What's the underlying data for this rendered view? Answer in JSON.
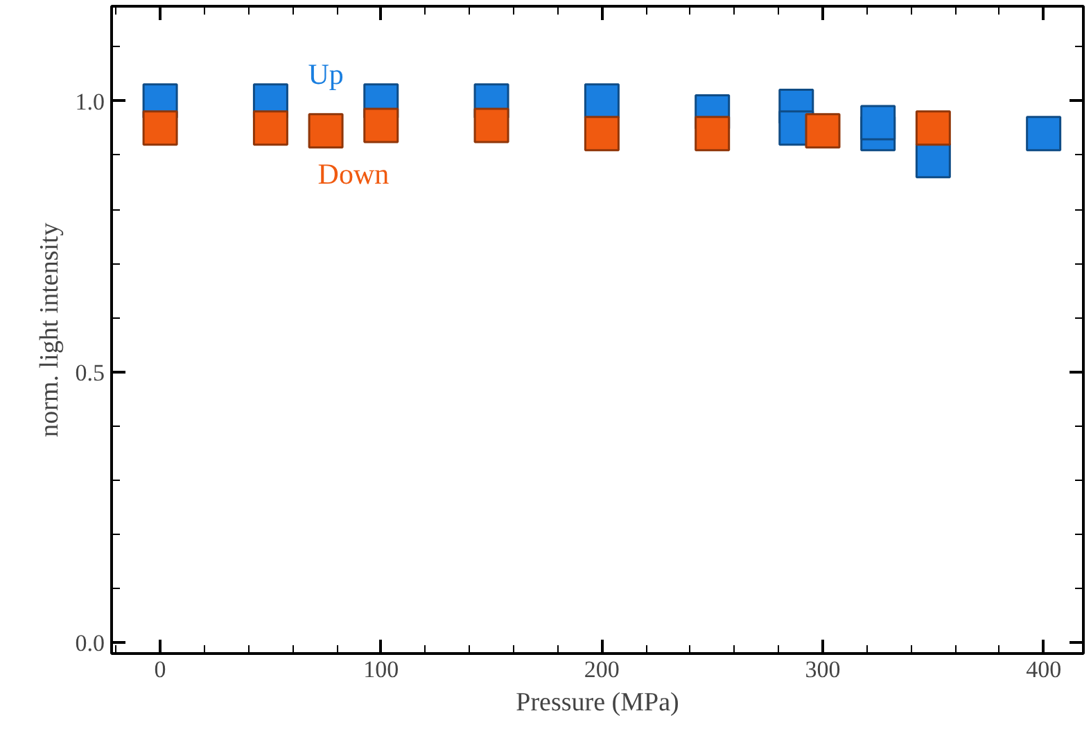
{
  "chart_data": {
    "type": "scatter",
    "xlabel": "Pressure (MPa)",
    "ylabel": "norm. light intensity",
    "marker": "square",
    "legend": false,
    "grid": false,
    "xlim": [
      -22,
      418
    ],
    "xticks": [
      0,
      100,
      200,
      300,
      400
    ],
    "ylim": [
      -0.02,
      1.175
    ],
    "yticks": [
      {
        "value": 0,
        "label": "0.0"
      },
      0.5,
      {
        "value": 1,
        "label": "1.0"
      }
    ],
    "series": [
      {
        "name": "Up",
        "color": "#1a7fe0",
        "x": [
          0,
          50,
          100,
          150,
          200,
          250,
          288,
          288,
          325,
          325,
          350,
          400
        ],
        "values": [
          1.0,
          1.0,
          1.0,
          1.0,
          1.0,
          0.98,
          0.99,
          0.95,
          0.94,
          0.96,
          0.89,
          0.94
        ]
      },
      {
        "name": "Down",
        "color": "#f05a10",
        "x": [
          0,
          50,
          75,
          100,
          150,
          200,
          250,
          300,
          350
        ],
        "values": [
          0.95,
          0.95,
          0.945,
          0.955,
          0.955,
          0.94,
          0.94,
          0.945,
          0.95
        ]
      }
    ]
  }
}
